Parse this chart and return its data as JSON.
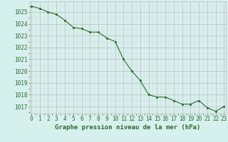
{
  "x": [
    0,
    1,
    2,
    3,
    4,
    5,
    6,
    7,
    8,
    9,
    10,
    11,
    12,
    13,
    14,
    15,
    16,
    17,
    18,
    19,
    20,
    21,
    22,
    23
  ],
  "y": [
    1025.5,
    1025.3,
    1025.0,
    1024.8,
    1024.3,
    1023.7,
    1023.6,
    1023.3,
    1023.3,
    1022.8,
    1022.5,
    1021.0,
    1020.0,
    1019.2,
    1018.0,
    1017.8,
    1017.8,
    1017.5,
    1017.2,
    1017.2,
    1017.5,
    1016.9,
    1016.6,
    1017.0
  ],
  "line_color": "#2d6a2d",
  "marker_color": "#2d6a2d",
  "bg_color": "#d6f0ee",
  "grid_major_color": "#c0b8b8",
  "grid_minor_color": "#ddd0d0",
  "title": "Graphe pression niveau de la mer (hPa)",
  "title_color": "#2d6a2d",
  "tick_color": "#2d6a2d",
  "ylim_min": 1016.4,
  "ylim_max": 1025.9,
  "xlim_min": -0.2,
  "xlim_max": 23.2,
  "yticks": [
    1017,
    1018,
    1019,
    1020,
    1021,
    1022,
    1023,
    1024,
    1025
  ],
  "xticks": [
    0,
    1,
    2,
    3,
    4,
    5,
    6,
    7,
    8,
    9,
    10,
    11,
    12,
    13,
    14,
    15,
    16,
    17,
    18,
    19,
    20,
    21,
    22,
    23
  ],
  "tick_fontsize": 5.5,
  "title_fontsize": 6.5
}
